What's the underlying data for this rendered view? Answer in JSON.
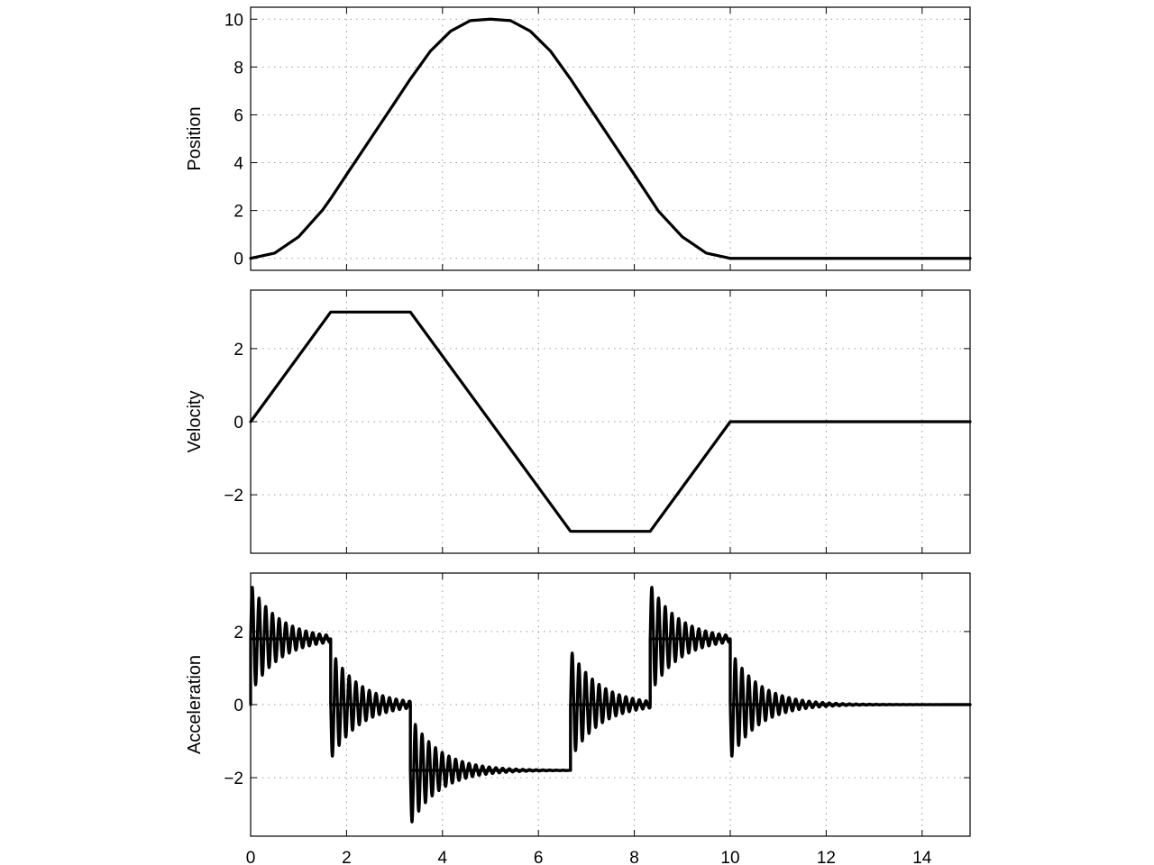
{
  "chart_data": [
    {
      "type": "line",
      "ylabel": "Position",
      "xlim": [
        0,
        15
      ],
      "ylim": [
        -0.5,
        10.5
      ],
      "yticks": [
        0,
        2,
        4,
        6,
        8,
        10
      ],
      "xticks": [
        0,
        2,
        4,
        6,
        8,
        10,
        12,
        14
      ],
      "grid": true,
      "series": [
        {
          "x": [
            0,
            0.5,
            1,
            1.5,
            1.67,
            2,
            2.5,
            3,
            3.33,
            3.75,
            4.17,
            4.58,
            5,
            5.42,
            5.83,
            6.25,
            6.67,
            7,
            7.5,
            8,
            8.33,
            8.5,
            9,
            9.5,
            10,
            12,
            15
          ],
          "y": [
            0,
            0.22,
            0.9,
            2.02,
            2.5,
            3.5,
            5.0,
            6.5,
            7.5,
            8.67,
            9.5,
            9.94,
            10,
            9.94,
            9.5,
            8.67,
            7.5,
            6.5,
            5.0,
            3.5,
            2.5,
            1.98,
            0.9,
            0.22,
            0,
            0,
            0
          ]
        }
      ]
    },
    {
      "type": "line",
      "ylabel": "Velocity",
      "xlim": [
        0,
        15
      ],
      "ylim": [
        -3.6,
        3.6
      ],
      "yticks": [
        -2,
        0,
        2
      ],
      "xticks": [
        0,
        2,
        4,
        6,
        8,
        10,
        12,
        14
      ],
      "grid": true,
      "series": [
        {
          "x": [
            0,
            1.67,
            3.33,
            6.67,
            8.33,
            10,
            15
          ],
          "y": [
            0,
            3,
            3,
            -3,
            -3,
            0,
            0
          ]
        }
      ]
    },
    {
      "type": "line",
      "ylabel": "Acceleration",
      "xlim": [
        0,
        15
      ],
      "ylim": [
        -3.6,
        3.6
      ],
      "yticks": [
        -2,
        0,
        2
      ],
      "xticks": [
        0,
        2,
        4,
        6,
        8,
        10,
        12,
        14
      ],
      "xtick_labels": [
        "0",
        "2",
        "4",
        "6",
        "8",
        "10",
        "12",
        "14"
      ],
      "grid": true,
      "series": [
        {
          "segments": [
            {
              "x": [
                0,
                1.67
              ],
              "y": 1.8
            },
            {
              "x": [
                1.67,
                3.33
              ],
              "y": 0
            },
            {
              "x": [
                3.33,
                6.67
              ],
              "y": -1.8
            },
            {
              "x": [
                6.67,
                8.33
              ],
              "y": 0
            },
            {
              "x": [
                8.33,
                10
              ],
              "y": 1.8
            },
            {
              "x": [
                10,
                15
              ],
              "y": 0
            }
          ],
          "oscillation": {
            "initial_overshoot": 1.5,
            "period": 0.14,
            "decay": 0.6
          }
        }
      ]
    }
  ]
}
